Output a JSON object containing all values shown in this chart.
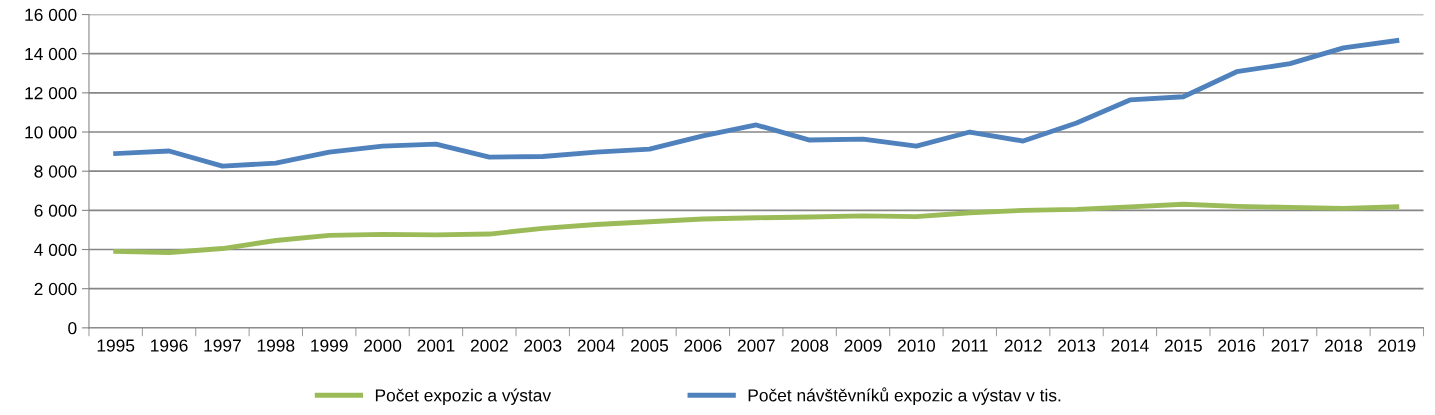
{
  "chart_data": {
    "type": "line",
    "categories": [
      "1995",
      "1996",
      "1997",
      "1998",
      "1999",
      "2000",
      "2001",
      "2002",
      "2003",
      "2004",
      "2005",
      "2006",
      "2007",
      "2008",
      "2009",
      "2010",
      "2011",
      "2012",
      "2013",
      "2014",
      "2015",
      "2016",
      "2017",
      "2018",
      "2019"
    ],
    "series": [
      {
        "name": "Počet expozic a výstav",
        "color": "#9bbb59",
        "values": [
          3900,
          3850,
          4050,
          4460,
          4720,
          4770,
          4750,
          4790,
          5080,
          5280,
          5420,
          5560,
          5620,
          5660,
          5720,
          5680,
          5880,
          6000,
          6050,
          6180,
          6310,
          6200,
          6150,
          6100,
          6180
        ]
      },
      {
        "name": "Počet návštěvníků expozic a výstav v tis.",
        "color": "#4f81bd",
        "values": [
          8900,
          9030,
          8260,
          8410,
          8970,
          9280,
          9380,
          8720,
          8750,
          8970,
          9130,
          9800,
          10360,
          9590,
          9640,
          9280,
          10000,
          9540,
          10460,
          11640,
          11800,
          13080,
          13490,
          14300,
          14670
        ]
      }
    ],
    "ylim": [
      0,
      16000
    ],
    "yticks": [
      0,
      {
        "value": 2000,
        "label": "2 000"
      },
      {
        "value": 4000,
        "label": "4 000"
      },
      {
        "value": 6000,
        "label": "6 000"
      },
      {
        "value": 8000,
        "label": "8 000"
      },
      {
        "value": 10000,
        "label": "10 000"
      },
      {
        "value": 12000,
        "label": "12 000"
      },
      {
        "value": 14000,
        "label": "14 000"
      },
      {
        "value": 16000,
        "label": "16 000"
      }
    ],
    "grid": "y",
    "legend": "bottom",
    "marker": "none",
    "line_style": "solid"
  }
}
